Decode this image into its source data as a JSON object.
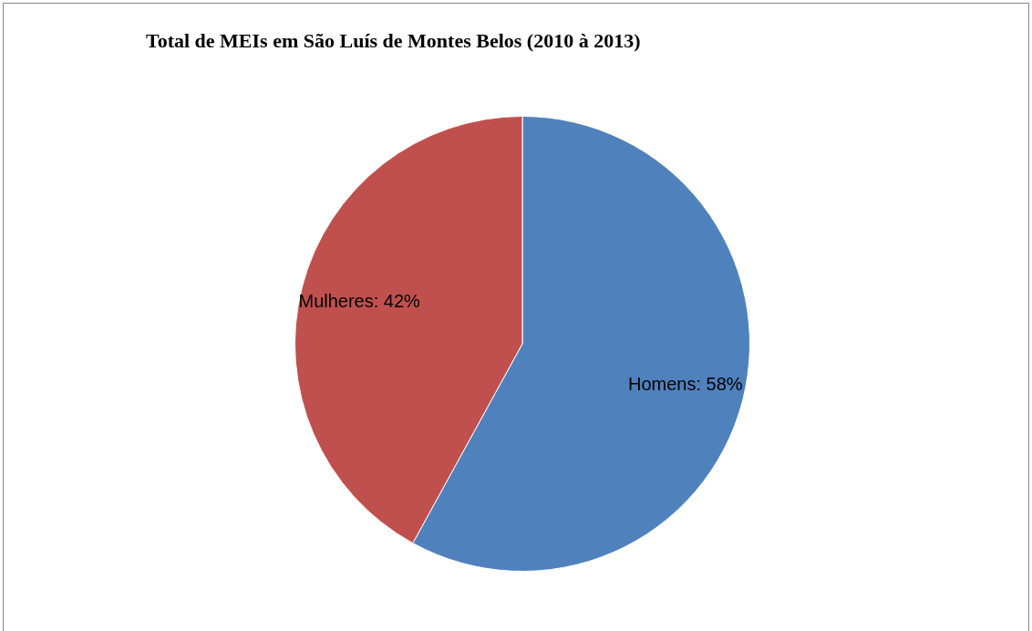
{
  "chart_data": {
    "type": "pie",
    "title": "Total de MEIs em São Luís de Montes Belos (2010 à 2013)",
    "categories": [
      "Homens",
      "Mulheres"
    ],
    "values": [
      58,
      42
    ],
    "colors": [
      "#4f81bd",
      "#c0504d"
    ],
    "value_labels": [
      "58%",
      "42%"
    ],
    "legend": false
  }
}
